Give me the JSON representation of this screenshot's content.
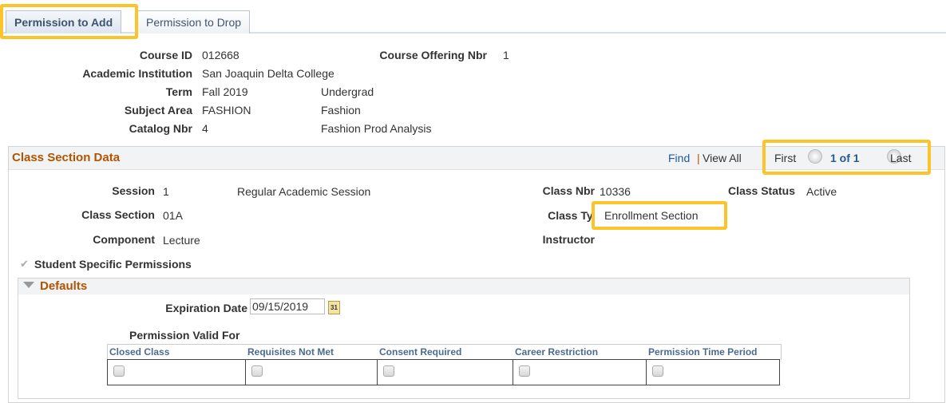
{
  "tabs": [
    {
      "label": "Permission to Add",
      "active": true
    },
    {
      "label": "Permission to Drop",
      "active": false
    }
  ],
  "course": {
    "course_id_label": "Course ID",
    "course_id": "012668",
    "offering_label": "Course Offering Nbr",
    "offering": "1",
    "institution_label": "Academic Institution",
    "institution": "San Joaquin Delta College",
    "term_label": "Term",
    "term": "Fall 2019",
    "career": "Undergrad",
    "subject_label": "Subject Area",
    "subject": "FASHION",
    "subject_desc": "Fashion",
    "catalog_label": "Catalog Nbr",
    "catalog": "4",
    "catalog_desc": "Fashion Prod Analysis"
  },
  "section": {
    "title": "Class Section Data",
    "find": "Find",
    "sep": "|",
    "view_all": "View All",
    "first": "First",
    "count": "1 of 1",
    "last": "Last",
    "session_label": "Session",
    "session": "1",
    "session_desc": "Regular Academic Session",
    "class_nbr_label": "Class Nbr",
    "class_nbr": "10336",
    "status_label": "Class Status",
    "status": "Active",
    "class_section_label": "Class Section",
    "class_section": "01A",
    "class_type_label": "Class Type",
    "class_type": "Enrollment Section",
    "component_label": "Component",
    "component": "Lecture",
    "instructor_label": "Instructor",
    "student_specific_label": "Student Specific Permissions",
    "student_specific_checked": true
  },
  "defaults": {
    "title": "Defaults",
    "expiration_label": "Expiration Date",
    "expiration": "09/15/2019",
    "valid_for_label": "Permission Valid For",
    "columns": [
      "Closed Class",
      "Requisites Not Met",
      "Consent Required",
      "Career Restriction",
      "Permission Time Period"
    ]
  },
  "colors": {
    "highlight": "#fcc42b",
    "section_title": "#b25400",
    "link": "#1f5a9a"
  }
}
